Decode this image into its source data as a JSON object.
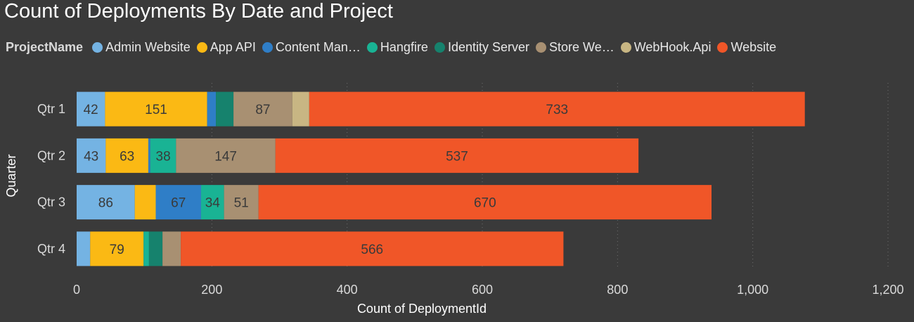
{
  "chart_data": {
    "type": "bar",
    "orientation": "horizontal",
    "stacked": true,
    "title": "Count of Deployments By Date and Project",
    "legend_title": "ProjectName",
    "legend_position": "top-left",
    "xlabel": "Count of DeploymentId",
    "ylabel": "Quarter",
    "xlim": [
      0,
      1200
    ],
    "xticks": [
      0,
      200,
      400,
      600,
      800,
      1000,
      1200
    ],
    "xtick_labels": [
      "0",
      "200",
      "400",
      "600",
      "800",
      "1,000",
      "1,200"
    ],
    "grid": "vertical-dotted",
    "categories": [
      "Qtr 1",
      "Qtr 2",
      "Qtr 3",
      "Qtr 4"
    ],
    "series": [
      {
        "name": "Admin Website",
        "legend_label": "Admin Website",
        "color": "#74b3e3",
        "values": [
          42,
          43,
          86,
          20
        ],
        "labels": [
          "42",
          "43",
          "86",
          ""
        ]
      },
      {
        "name": "App API",
        "legend_label": "App API",
        "color": "#fbb914",
        "values": [
          151,
          63,
          31,
          79
        ],
        "labels": [
          "151",
          "63",
          "",
          "79"
        ]
      },
      {
        "name": "Content Man…",
        "legend_label": "Content Man…",
        "color": "#2f7ec7",
        "values": [
          13,
          3,
          67,
          0
        ],
        "labels": [
          "",
          "",
          "67",
          ""
        ]
      },
      {
        "name": "Hangfire",
        "legend_label": "Hangfire",
        "color": "#19b394",
        "values": [
          0,
          38,
          34,
          8
        ],
        "labels": [
          "",
          "38",
          "34",
          ""
        ]
      },
      {
        "name": "Identity Server",
        "legend_label": "Identity Server",
        "color": "#16826d",
        "values": [
          26,
          0,
          0,
          20
        ],
        "labels": [
          "",
          "",
          "",
          ""
        ]
      },
      {
        "name": "Store We…",
        "legend_label": "Store We…",
        "color": "#a89072",
        "values": [
          87,
          147,
          51,
          27
        ],
        "labels": [
          "87",
          "147",
          "51",
          ""
        ]
      },
      {
        "name": "WebHook.Api",
        "legend_label": "WebHook.Api",
        "color": "#c8b683",
        "values": [
          25,
          0,
          0,
          0
        ],
        "labels": [
          "",
          "",
          "",
          ""
        ]
      },
      {
        "name": "Website",
        "legend_label": "Website",
        "color": "#f05628",
        "values": [
          733,
          537,
          670,
          566
        ],
        "labels": [
          "733",
          "537",
          "670",
          "566"
        ]
      }
    ]
  },
  "colors": {
    "background": "#3a3a3a",
    "axis_text": "#d9d9d9",
    "bar_label": "#3a3a3a"
  }
}
